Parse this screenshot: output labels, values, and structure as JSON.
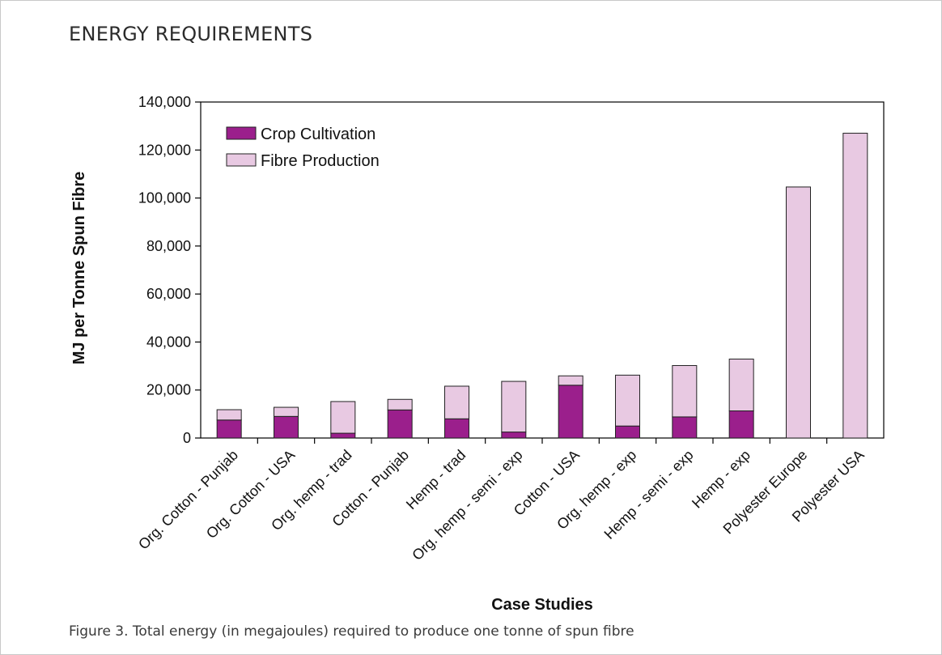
{
  "header": {
    "title": "ENERGY REQUIREMENTS"
  },
  "caption": "Figure 3. Total energy (in megajoules) required to produce one tonne of spun fibre",
  "chart_data": {
    "type": "bar",
    "stacked": true,
    "categories": [
      "Org. Cotton - Punjab",
      "Org. Cotton - USA",
      "Org. hemp - trad",
      "Cotton - Punjab",
      "Hemp - trad",
      "Org. hemp - semi - exp",
      "Cotton - USA",
      "Org. hemp - exp",
      "Hemp - semi - exp",
      "Hemp - exp",
      "Polyester Europe",
      "Polyester USA"
    ],
    "series": [
      {
        "name": "Crop Cultivation",
        "color": "#9b1f8c",
        "values": [
          7500,
          9000,
          2000,
          11700,
          8000,
          2500,
          22000,
          5000,
          8800,
          11300,
          0,
          0
        ]
      },
      {
        "name": "Fibre Production",
        "color": "#e8c9e2",
        "values": [
          4300,
          3800,
          13200,
          4400,
          13600,
          21100,
          3900,
          21200,
          21400,
          21600,
          104600,
          127000
        ]
      }
    ],
    "xlabel": "Case Studies",
    "ylabel": "MJ per Tonne Spun Fibre",
    "ylim": [
      0,
      140000
    ],
    "yticks": [
      0,
      20000,
      40000,
      60000,
      80000,
      100000,
      120000,
      140000
    ],
    "ytick_labels": [
      "0",
      "20,000",
      "40,000",
      "60,000",
      "80,000",
      "100,000",
      "120,000",
      "140,000"
    ],
    "legend": {
      "placement": "top-left",
      "entries": [
        "Crop Cultivation",
        "Fibre Production"
      ]
    },
    "grid": false
  }
}
